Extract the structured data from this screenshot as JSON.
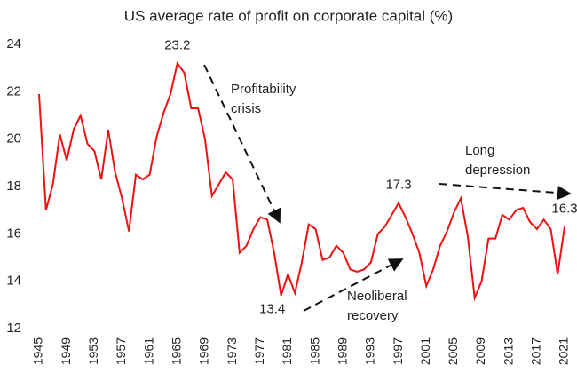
{
  "chart_data": {
    "type": "line",
    "title": "US average rate of profit on corporate capital (%)",
    "x": [
      1945,
      1946,
      1947,
      1948,
      1949,
      1950,
      1951,
      1952,
      1953,
      1954,
      1955,
      1956,
      1957,
      1958,
      1959,
      1960,
      1961,
      1962,
      1963,
      1964,
      1965,
      1966,
      1967,
      1968,
      1969,
      1970,
      1971,
      1972,
      1973,
      1974,
      1975,
      1976,
      1977,
      1978,
      1979,
      1980,
      1981,
      1982,
      1983,
      1984,
      1985,
      1986,
      1987,
      1988,
      1989,
      1990,
      1991,
      1992,
      1993,
      1994,
      1995,
      1996,
      1997,
      1998,
      1999,
      2000,
      2001,
      2002,
      2003,
      2004,
      2005,
      2006,
      2007,
      2008,
      2009,
      2010,
      2011,
      2012,
      2013,
      2014,
      2015,
      2016,
      2017,
      2018,
      2019,
      2020,
      2021
    ],
    "series": [
      {
        "color": "#ee1111",
        "values": [
          21.9,
          17.0,
          18.1,
          20.2,
          19.1,
          20.4,
          21.0,
          19.8,
          19.5,
          18.3,
          20.4,
          18.6,
          17.5,
          16.1,
          18.5,
          18.3,
          18.5,
          20.1,
          21.1,
          21.9,
          23.2,
          22.8,
          21.3,
          21.3,
          20.0,
          17.6,
          18.1,
          18.6,
          18.3,
          15.2,
          15.5,
          16.2,
          16.7,
          16.6,
          15.2,
          13.4,
          14.3,
          13.5,
          14.8,
          16.4,
          16.2,
          14.9,
          15.0,
          15.5,
          15.2,
          14.5,
          14.4,
          14.5,
          14.8,
          16.0,
          16.3,
          16.8,
          17.3,
          16.7,
          16.0,
          15.2,
          13.8,
          14.5,
          15.5,
          16.1,
          16.9,
          17.5,
          15.9,
          13.3,
          14.0,
          15.8,
          15.8,
          16.8,
          16.6,
          17.0,
          17.1,
          16.5,
          16.2,
          16.6,
          16.2,
          14.3,
          16.3
        ],
        "value_labels": [
          null,
          null,
          null,
          null,
          null,
          null,
          null,
          null,
          null,
          null,
          null,
          null,
          null,
          null,
          null,
          null,
          null,
          null,
          null,
          null,
          "23.2",
          null,
          null,
          null,
          null,
          null,
          null,
          null,
          null,
          null,
          null,
          null,
          null,
          null,
          null,
          "13.4",
          null,
          null,
          null,
          null,
          null,
          null,
          null,
          null,
          null,
          null,
          null,
          null,
          null,
          null,
          null,
          null,
          "17.3",
          null,
          null,
          null,
          null,
          null,
          null,
          null,
          null,
          null,
          null,
          null,
          null,
          null,
          null,
          null,
          null,
          null,
          null,
          null,
          null,
          null,
          null,
          null,
          "16.3"
        ]
      }
    ],
    "xlim": [
      1945,
      2021
    ],
    "xticks": [
      1945,
      1949,
      1953,
      1957,
      1961,
      1965,
      1969,
      1973,
      1977,
      1981,
      1985,
      1989,
      1993,
      1997,
      2001,
      2005,
      2009,
      2013,
      2017,
      2021
    ],
    "ylim": [
      12,
      24
    ],
    "yticks": [
      12,
      14,
      16,
      18,
      20,
      22,
      24
    ],
    "grid": false,
    "annotations": [
      [
        "Profitability",
        "crisis"
      ],
      [
        "Neoliberal",
        "recovery"
      ],
      [
        "Long",
        "depression"
      ]
    ]
  }
}
